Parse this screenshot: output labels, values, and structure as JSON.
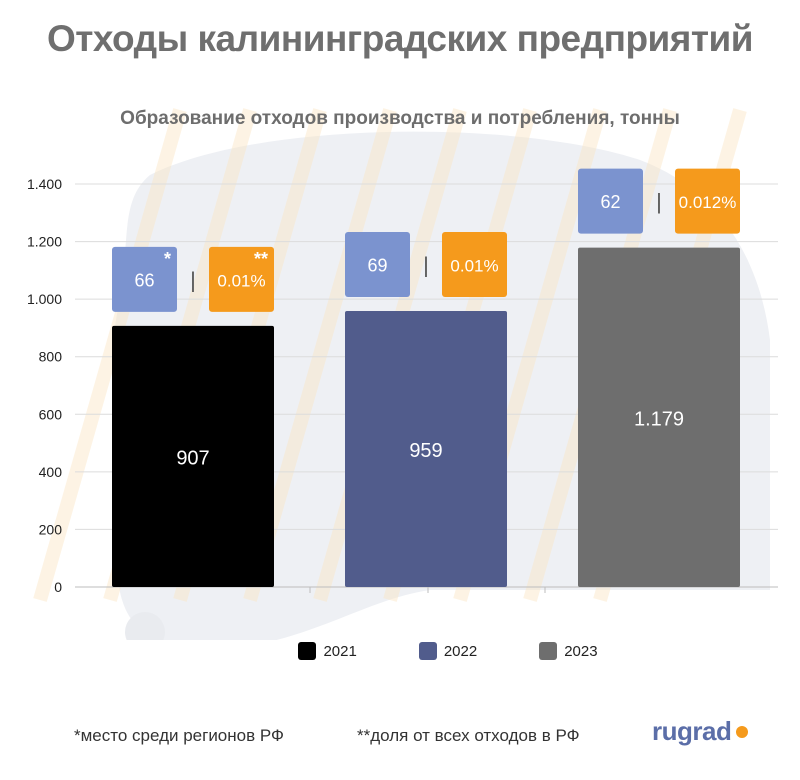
{
  "header": {
    "title": "Отходы калининградских предприятий"
  },
  "chart_data": {
    "type": "bar",
    "title": "Образование отходов производства и потребления, тонны",
    "xlabel": "",
    "ylabel": "",
    "categories": [
      "2021",
      "2022",
      "2023"
    ],
    "values": [
      907,
      959,
      1179
    ],
    "value_labels": [
      "907",
      "959",
      "1.179"
    ],
    "colors": [
      "#000000",
      "#515c8c",
      "#6e6e6e"
    ],
    "ylim": [
      0,
      1500
    ],
    "yticks": [
      0,
      200,
      400,
      600,
      800,
      1000,
      1200,
      1400
    ],
    "ytick_labels": [
      "0",
      "200",
      "400",
      "600",
      "800",
      "1.000",
      "1.200",
      "1.400"
    ],
    "grid": true,
    "legend": "bottom",
    "annotations": [
      {
        "rank": "66",
        "share": "0.01%",
        "rank_mark": "*",
        "share_mark": "**"
      },
      {
        "rank": "69",
        "share": "0.01%",
        "rank_mark": "",
        "share_mark": ""
      },
      {
        "rank": "62",
        "share": "0.012%",
        "rank_mark": "",
        "share_mark": ""
      }
    ],
    "annotation_colors": {
      "rank": "#7b93cf",
      "share": "#f59a1c"
    },
    "separator": "|"
  },
  "footnotes": {
    "rank_note": "*место среди регионов РФ",
    "share_note": "**доля от всех отходов в РФ"
  },
  "brand": {
    "name": "rugrad",
    "dot_color": "#f59a1c"
  }
}
